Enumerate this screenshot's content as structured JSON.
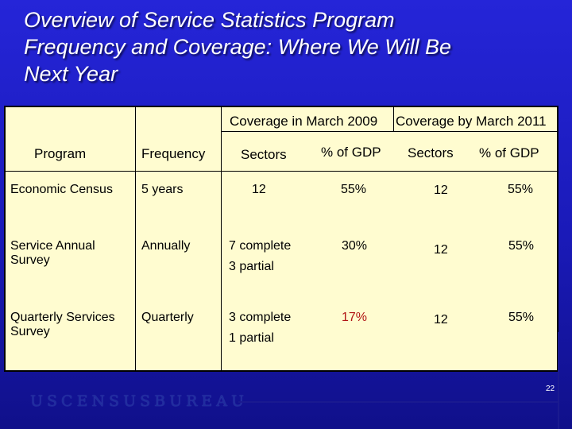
{
  "title": {
    "line1": "Overview of Service Statistics Program",
    "line2": "Frequency and Coverage: Where We Will Be",
    "line3": "Next Year"
  },
  "table": {
    "group_headers": {
      "coverage_2009": "Coverage in March 2009",
      "coverage_2011": "Coverage by March 2011"
    },
    "column_headers": {
      "program": "Program",
      "frequency": "Frequency",
      "sectors_2009": "Sectors",
      "gdp_2009": "% of GDP",
      "sectors_2011": "Sectors",
      "gdp_2011": "% of GDP"
    },
    "rows": [
      {
        "program_line1": "Economic Census",
        "program_line2": "",
        "frequency": "5 years",
        "sectors_2009_line1": "12",
        "sectors_2009_line2": "",
        "gdp_2009": "55%",
        "sectors_2011": "12",
        "gdp_2011": "55%"
      },
      {
        "program_line1": "Service Annual",
        "program_line2": "Survey",
        "frequency": "Annually",
        "sectors_2009_line1": "7 complete",
        "sectors_2009_line2": "3 partial",
        "gdp_2009": "30%",
        "sectors_2011": "12",
        "gdp_2011": "55%"
      },
      {
        "program_line1": "Quarterly Services",
        "program_line2": "Survey",
        "frequency": "Quarterly",
        "sectors_2009_line1": "3 complete",
        "sectors_2009_line2": "1 partial",
        "gdp_2009": "17%",
        "gdp_2009_color": "#b01414",
        "sectors_2011": "12",
        "gdp_2011": "55%"
      }
    ]
  },
  "footer": {
    "logo_text": "USCENSUSBUREAU",
    "page_number": "22"
  },
  "colors": {
    "background": "#1a1ab8",
    "table_fill": "#fffcd0",
    "highlight_red": "#b01414"
  }
}
